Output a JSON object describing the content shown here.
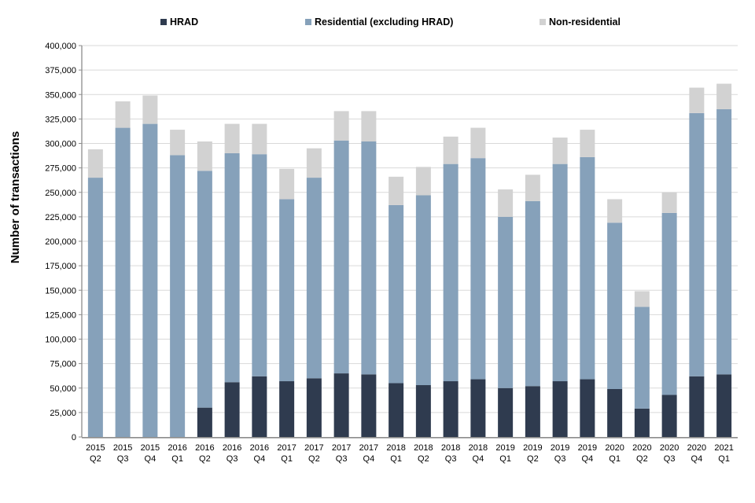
{
  "chart_data": {
    "type": "bar",
    "stacked": true,
    "title": "",
    "xlabel": "",
    "ylabel": "Number of transactions",
    "ylim": [
      0,
      400000
    ],
    "ytick_step": 25000,
    "grid": true,
    "legend_position": "top",
    "axis_color": "#8c8c8c",
    "gridline_color": "#d9d9d9",
    "tick_label_color": "#000000",
    "categories": [
      "2015 Q2",
      "2015 Q3",
      "2015 Q4",
      "2016 Q1",
      "2016 Q2",
      "2016 Q3",
      "2016 Q4",
      "2017 Q1",
      "2017 Q2",
      "2017 Q3",
      "2017 Q4",
      "2018 Q1",
      "2018 Q2",
      "2018 Q3",
      "2018 Q4",
      "2019 Q1",
      "2019 Q2",
      "2019 Q3",
      "2019 Q4",
      "2020 Q1",
      "2020 Q2",
      "2020 Q3",
      "2020 Q4",
      "2021 Q1"
    ],
    "series": [
      {
        "name": "HRAD",
        "color": "#2f3b4f",
        "values": [
          0,
          0,
          0,
          0,
          30000,
          56000,
          62000,
          57000,
          60000,
          65000,
          64000,
          55000,
          53000,
          57000,
          59000,
          50000,
          52000,
          57000,
          59000,
          49000,
          29000,
          43000,
          62000,
          64000
        ]
      },
      {
        "name": "Residential (excluding HRAD)",
        "color": "#86a1ba",
        "values": [
          265000,
          316000,
          320000,
          288000,
          242000,
          234000,
          227000,
          186000,
          205000,
          238000,
          238000,
          182000,
          194000,
          222000,
          226000,
          175000,
          189000,
          222000,
          227000,
          170000,
          104000,
          186000,
          269000,
          271000
        ]
      },
      {
        "name": "Non-residential",
        "color": "#d2d2d2",
        "values": [
          29000,
          27000,
          29000,
          26000,
          30000,
          30000,
          31000,
          31000,
          30000,
          30000,
          31000,
          29000,
          29000,
          28000,
          31000,
          28000,
          27000,
          27000,
          28000,
          24000,
          16000,
          21000,
          26000,
          26000
        ]
      }
    ]
  }
}
